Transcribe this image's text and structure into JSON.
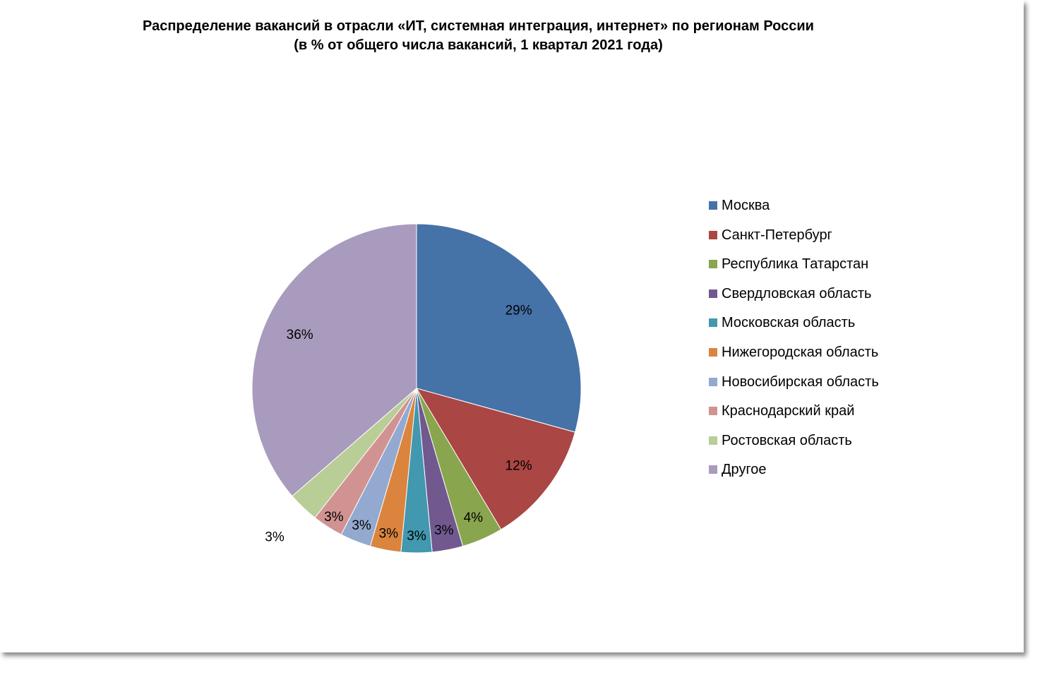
{
  "chart_data": {
    "type": "pie",
    "title_lines": [
      "Распределение вакансий в отрасли «ИТ, системная интеграция, интернет» по регионам России",
      "(в % от общего числа вакансий, 1 квартал 2021 года)"
    ],
    "legend_position": "right",
    "slices": [
      {
        "name": "Москва",
        "value": 29,
        "label": "29%",
        "color": "#4572A7"
      },
      {
        "name": "Санкт-Петербург",
        "value": 12,
        "label": "12%",
        "color": "#AA4643"
      },
      {
        "name": "Республика Татарстан",
        "value": 4,
        "label": "4%",
        "color": "#89A54E"
      },
      {
        "name": "Свердловская область",
        "value": 3,
        "label": "3%",
        "color": "#71588F"
      },
      {
        "name": "Московская область",
        "value": 3,
        "label": "3%",
        "color": "#4198AF"
      },
      {
        "name": "Нижегородская область",
        "value": 3,
        "label": "3%",
        "color": "#DB843D"
      },
      {
        "name": "Новосибирская область",
        "value": 3,
        "label": "3%",
        "color": "#93A9CF"
      },
      {
        "name": "Краснодарский край",
        "value": 3,
        "label": "3%",
        "color": "#D19392"
      },
      {
        "name": "Ростовская область",
        "value": 3,
        "label": "3%",
        "color": "#B9CD96"
      },
      {
        "name": "Другое",
        "value": 36,
        "label": "36%",
        "color": "#A99BBD"
      }
    ]
  }
}
